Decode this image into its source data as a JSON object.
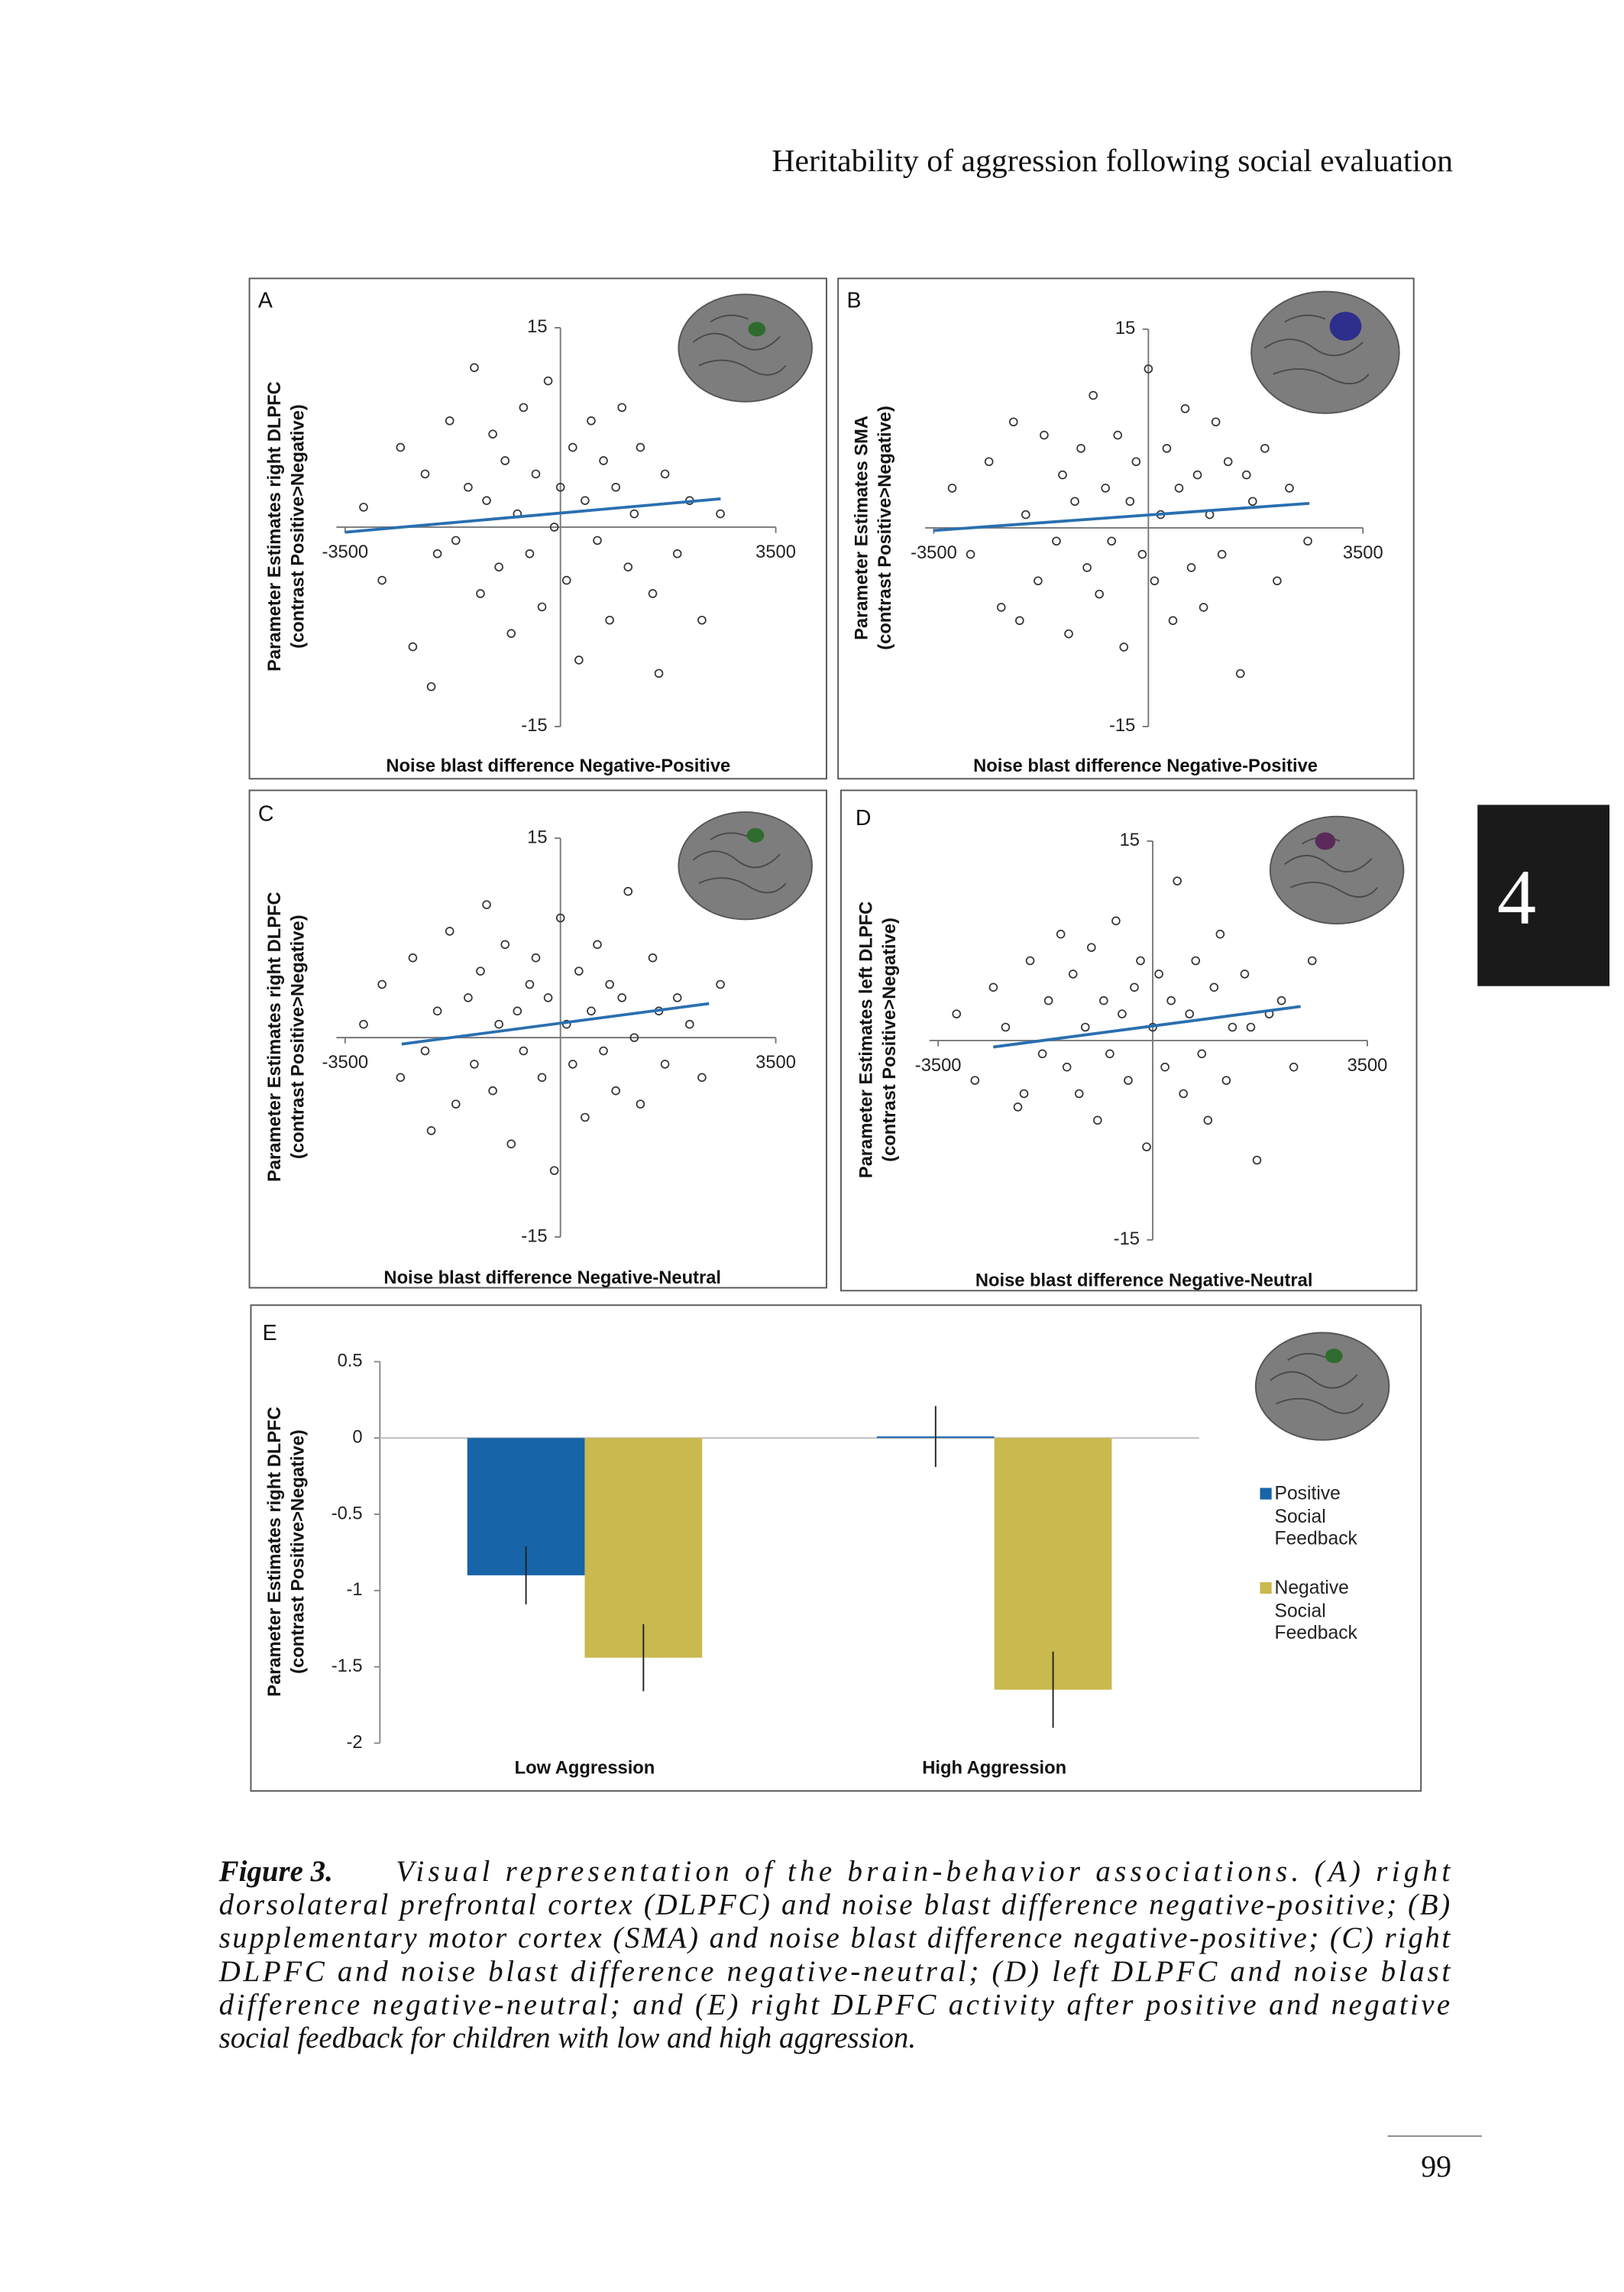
{
  "header": {
    "title": "Heritability of aggression following social evaluation"
  },
  "side_tab": "4",
  "page_number": "99",
  "caption": {
    "label": "Figure 3.",
    "lines": [
      "Visual representation of the brain-behavior associations. (A) right",
      "dorsolateral prefrontal cortex (DLPFC) and noise blast difference negative-positive; (B)",
      "supplementary motor cortex (SMA) and noise blast difference negative-positive; (C) right",
      "DLPFC and noise blast difference negative-neutral; (D) left DLPFC and noise blast",
      "difference negative-neutral; and (E) right DLPFC activity after positive and negative",
      "social feedback for children with low and high aggression."
    ]
  },
  "chart_data": [
    {
      "type": "scatter",
      "label": "A",
      "xlabel": "Noise blast difference Negative-Positive",
      "ylabel": [
        "Parameter Estimates right DLPFC",
        "(contrast Positive>Negative)"
      ],
      "xlim": [
        -3500,
        3500
      ],
      "ylim": [
        -15,
        15
      ],
      "xticks": [
        -3500,
        3500
      ],
      "yticks": [
        15,
        -15
      ],
      "x": [
        -3200,
        -2900,
        -2600,
        -2400,
        -2200,
        -2000,
        -1800,
        -1700,
        -1500,
        -1400,
        -1300,
        -1200,
        -1100,
        -1000,
        -900,
        -800,
        -700,
        -600,
        -500,
        -400,
        -300,
        -200,
        -100,
        0,
        100,
        200,
        300,
        400,
        500,
        600,
        700,
        800,
        900,
        1000,
        1100,
        1200,
        1300,
        1500,
        1700,
        1900,
        2100,
        2300,
        2600,
        -2100,
        1600
      ],
      "y": [
        1.5,
        -4,
        6,
        -9,
        4,
        -2,
        8,
        -1,
        3,
        12,
        -5,
        2,
        7,
        -3,
        5,
        -8,
        1,
        9,
        -2,
        4,
        -6,
        11,
        0,
        3,
        -4,
        6,
        -10,
        2,
        8,
        -1,
        5,
        -7,
        3,
        9,
        -3,
        1,
        6,
        -5,
        4,
        -2,
        2,
        -7,
        1,
        -12,
        -11
      ],
      "trend": {
        "x": [
          -3500,
          2604
        ],
        "y": [
          -0.38,
          2.13
        ],
        "color": "#2a6fb0"
      }
    },
    {
      "type": "scatter",
      "label": "B",
      "xlabel": "Noise blast difference Negative-Positive",
      "ylabel": [
        "Parameter Estimates SMA",
        "(contrast Positive>Negative)"
      ],
      "xlim": [
        -3500,
        3500
      ],
      "ylim": [
        -15,
        15
      ],
      "xticks": [
        -3500,
        3500
      ],
      "yticks": [
        15,
        -15
      ],
      "x": [
        -3200,
        -2900,
        -2600,
        -2400,
        -2200,
        -2000,
        -1800,
        -1700,
        -1500,
        -1400,
        -1300,
        -1200,
        -1100,
        -1000,
        -900,
        -800,
        -700,
        -600,
        -500,
        -400,
        -300,
        -200,
        -100,
        0,
        100,
        200,
        300,
        400,
        500,
        600,
        700,
        800,
        900,
        1000,
        1100,
        1200,
        1300,
        1500,
        1700,
        1900,
        2100,
        2300,
        2600,
        -2100,
        1600
      ],
      "y": [
        3,
        -2,
        5,
        -6,
        8,
        1,
        -4,
        7,
        -1,
        4,
        -8,
        2,
        6,
        -3,
        10,
        -5,
        3,
        -1,
        7,
        -9,
        2,
        5,
        -2,
        12,
        -4,
        1,
        6,
        -7,
        3,
        9,
        -3,
        4,
        -6,
        1,
        8,
        -2,
        5,
        -11,
        2,
        6,
        -4,
        3,
        -1,
        -7,
        4
      ],
      "trend": {
        "x": [
          -3500,
          2625
        ],
        "y": [
          -0.2,
          1.85
        ],
        "color": "#2a6fb0"
      }
    },
    {
      "type": "scatter",
      "label": "C",
      "xlabel": "Noise blast difference Negative-Neutral",
      "ylabel": [
        "Parameter Estimates right DLPFC",
        "(contrast Positive>Negative)"
      ],
      "xlim": [
        -3500,
        3500
      ],
      "ylim": [
        -15,
        15
      ],
      "xticks": [
        -3500,
        3500
      ],
      "yticks": [
        15,
        -15
      ],
      "x": [
        -3200,
        -2900,
        -2600,
        -2400,
        -2200,
        -2000,
        -1800,
        -1700,
        -1500,
        -1400,
        -1300,
        -1200,
        -1100,
        -1000,
        -900,
        -800,
        -700,
        -600,
        -500,
        -400,
        -300,
        -200,
        -100,
        0,
        100,
        200,
        300,
        400,
        500,
        600,
        700,
        800,
        900,
        1000,
        1100,
        1200,
        1300,
        1500,
        1700,
        1900,
        2100,
        2300,
        2600,
        -2100,
        1600
      ],
      "y": [
        1,
        4,
        -3,
        6,
        -1,
        2,
        8,
        -5,
        3,
        -2,
        5,
        10,
        -4,
        1,
        7,
        -8,
        2,
        -1,
        4,
        6,
        -3,
        3,
        -10,
        9,
        1,
        -2,
        5,
        -6,
        2,
        7,
        -1,
        4,
        -4,
        3,
        11,
        0,
        -5,
        6,
        -2,
        3,
        1,
        -3,
        4,
        -7,
        2
      ],
      "trend": {
        "x": [
          -2581,
          2416
        ],
        "y": [
          -0.49,
          2.56
        ],
        "color": "#2a6fb0"
      }
    },
    {
      "type": "scatter",
      "label": "D",
      "xlabel": "Noise blast difference Negative-Neutral",
      "ylabel": [
        "Parameter Estimates left  DLPFC",
        "(contrast Positive>Negative)"
      ],
      "xlim": [
        -3500,
        3500
      ],
      "ylim": [
        -15,
        15
      ],
      "xticks": [
        -3500,
        3500
      ],
      "yticks": [
        15,
        -15
      ],
      "x": [
        -3200,
        -2900,
        -2600,
        -2400,
        -2200,
        -2000,
        -1800,
        -1700,
        -1500,
        -1400,
        -1300,
        -1200,
        -1100,
        -1000,
        -900,
        -800,
        -700,
        -600,
        -500,
        -400,
        -300,
        -200,
        -100,
        0,
        100,
        200,
        300,
        400,
        500,
        600,
        700,
        800,
        900,
        1000,
        1100,
        1200,
        1300,
        1500,
        1700,
        1900,
        2100,
        2300,
        2600,
        -2100,
        1600
      ],
      "y": [
        2,
        -3,
        4,
        1,
        -5,
        6,
        -1,
        3,
        8,
        -2,
        5,
        -4,
        1,
        7,
        -6,
        3,
        -1,
        9,
        2,
        -3,
        4,
        6,
        -8,
        1,
        5,
        -2,
        3,
        12,
        -4,
        2,
        6,
        -1,
        -6,
        4,
        8,
        -3,
        1,
        5,
        -9,
        2,
        3,
        -2,
        6,
        -4,
        1
      ],
      "trend": {
        "x": [
          -2601,
          2412
        ],
        "y": [
          -0.49,
          2.56
        ],
        "color": "#2a6fb0"
      }
    },
    {
      "type": "bar",
      "label": "E",
      "ylabel": [
        "Parameter Estimates right DLPFC",
        "(contrast Positive>Negative)"
      ],
      "categories": [
        "Low Aggression",
        "High Aggression"
      ],
      "series": [
        {
          "name": "Positive Social Feedback",
          "color": "#1764a8",
          "values": [
            -0.9,
            0.01
          ],
          "errors": [
            0.19,
            0.2
          ]
        },
        {
          "name": "Negative Social Feedback",
          "color": "#c9b94f",
          "values": [
            -1.44,
            -1.65
          ],
          "errors": [
            0.22,
            0.25
          ]
        }
      ],
      "ylim": [
        -2,
        0.5
      ],
      "yticks": [
        0.5,
        0,
        -0.5,
        -1,
        -1.5,
        -2
      ]
    }
  ]
}
